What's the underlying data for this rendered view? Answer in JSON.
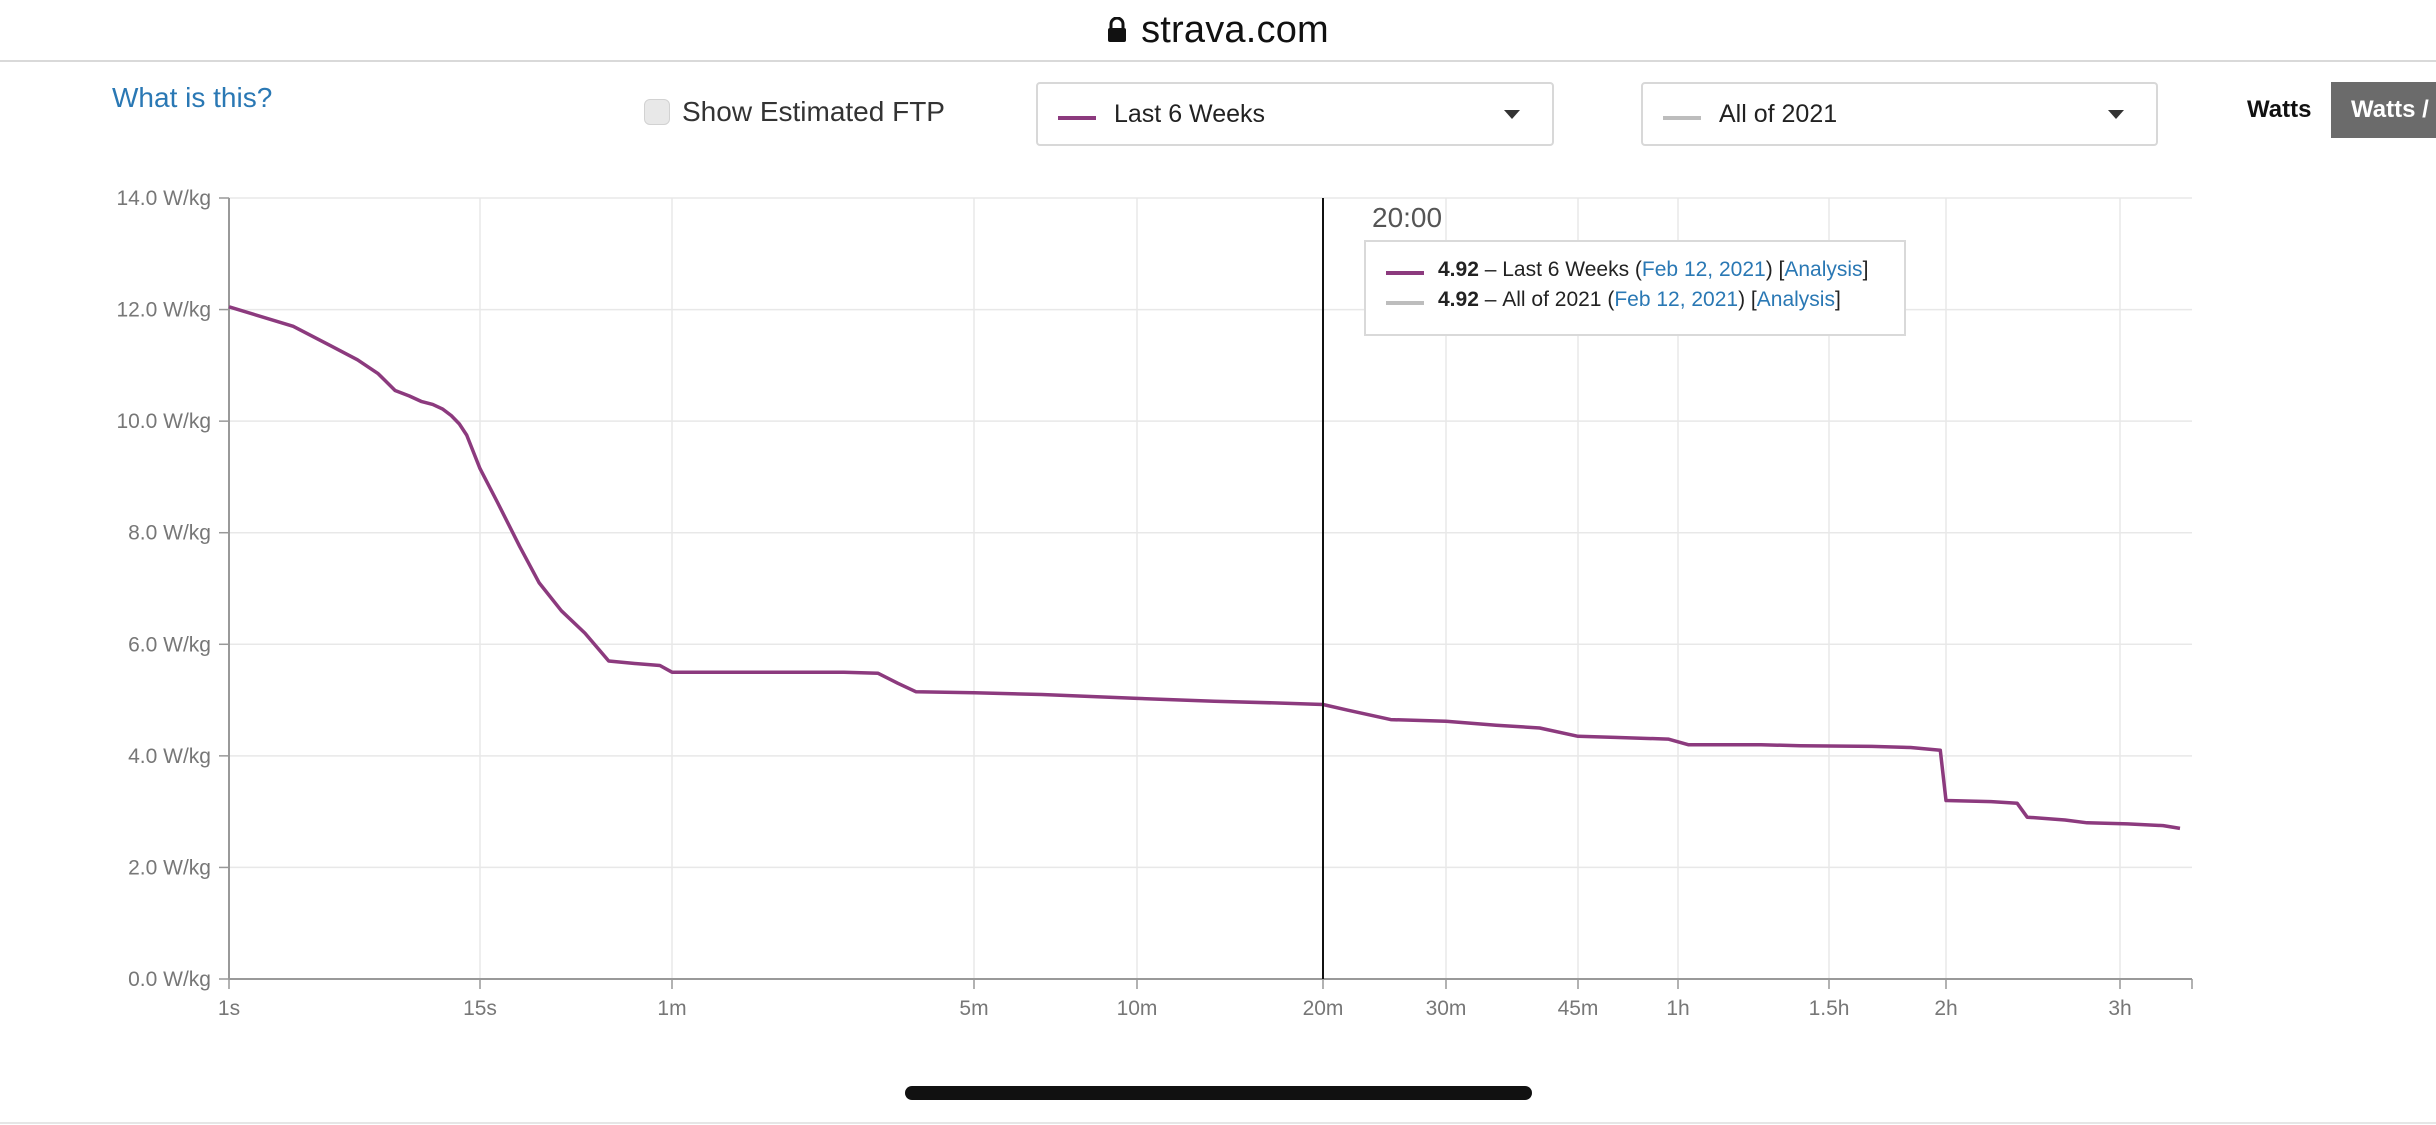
{
  "browser": {
    "url": "strava.com",
    "lock_icon": "lock-icon"
  },
  "header": {
    "what_is_this": "What is this?",
    "show_ftp_label": "Show Estimated FTP",
    "dropdown1": {
      "label": "Last 6 Weeks",
      "color": "#8c3a7e"
    },
    "dropdown2": {
      "label": "All of 2021",
      "color": "#bdbdbd"
    },
    "units": {
      "watts": "Watts",
      "wkg": "Watts /"
    }
  },
  "tooltip": {
    "time": "20:00",
    "rows": [
      {
        "value": "4.92",
        "dash": "–",
        "series": "Last 6 Weeks",
        "date": "Feb 12, 2021",
        "link": "Analysis",
        "color": "#8c3a7e"
      },
      {
        "value": "4.92",
        "dash": "–",
        "series": "All of 2021",
        "date": "Feb 12, 2021",
        "link": "Analysis",
        "color": "#bdbdbd"
      }
    ]
  },
  "chart_data": {
    "type": "line",
    "x_scale": "log-duration",
    "x_unit": "seconds",
    "ylim": [
      0,
      14
    ],
    "y_ticks": [
      {
        "value": 0,
        "label": "0.0 W/kg"
      },
      {
        "value": 2,
        "label": "2.0 W/kg"
      },
      {
        "value": 4,
        "label": "4.0 W/kg"
      },
      {
        "value": 6,
        "label": "6.0 W/kg"
      },
      {
        "value": 8,
        "label": "8.0 W/kg"
      },
      {
        "value": 10,
        "label": "10.0 W/kg"
      },
      {
        "value": 12,
        "label": "12.0 W/kg"
      },
      {
        "value": 14,
        "label": "14.0 W/kg"
      }
    ],
    "x_ticks": [
      {
        "value": 1,
        "label": "1s"
      },
      {
        "value": 15,
        "label": "15s"
      },
      {
        "value": 60,
        "label": "1m"
      },
      {
        "value": 300,
        "label": "5m"
      },
      {
        "value": 600,
        "label": "10m"
      },
      {
        "value": 1200,
        "label": "20m"
      },
      {
        "value": 1800,
        "label": "30m"
      },
      {
        "value": 2700,
        "label": "45m"
      },
      {
        "value": 3600,
        "label": "1h"
      },
      {
        "value": 5400,
        "label": "1.5h"
      },
      {
        "value": 7200,
        "label": "2h"
      },
      {
        "value": 10800,
        "label": "3h"
      }
    ],
    "grid": true,
    "cursor_x": 1200,
    "series": [
      {
        "name": "Last 6 Weeks",
        "color": "#8c3a7e",
        "points": [
          [
            1,
            12.05
          ],
          [
            2,
            11.7
          ],
          [
            3,
            11.35
          ],
          [
            4,
            11.1
          ],
          [
            5,
            10.85
          ],
          [
            6,
            10.55
          ],
          [
            7,
            10.45
          ],
          [
            8,
            10.35
          ],
          [
            9,
            10.3
          ],
          [
            10,
            10.22
          ],
          [
            11,
            10.1
          ],
          [
            12,
            9.95
          ],
          [
            13,
            9.75
          ],
          [
            15,
            9.15
          ],
          [
            17,
            8.55
          ],
          [
            20,
            7.75
          ],
          [
            23,
            7.1
          ],
          [
            27,
            6.6
          ],
          [
            32,
            6.2
          ],
          [
            38,
            5.7
          ],
          [
            45,
            5.66
          ],
          [
            55,
            5.62
          ],
          [
            60,
            5.5
          ],
          [
            75,
            5.5
          ],
          [
            100,
            5.5
          ],
          [
            150,
            5.5
          ],
          [
            180,
            5.48
          ],
          [
            200,
            5.3
          ],
          [
            220,
            5.15
          ],
          [
            300,
            5.13
          ],
          [
            400,
            5.1
          ],
          [
            600,
            5.03
          ],
          [
            800,
            4.98
          ],
          [
            1000,
            4.95
          ],
          [
            1200,
            4.92
          ],
          [
            1300,
            4.82
          ],
          [
            1500,
            4.65
          ],
          [
            1800,
            4.62
          ],
          [
            2100,
            4.55
          ],
          [
            2400,
            4.5
          ],
          [
            2700,
            4.35
          ],
          [
            3000,
            4.33
          ],
          [
            3500,
            4.3
          ],
          [
            3700,
            4.2
          ],
          [
            4500,
            4.2
          ],
          [
            5000,
            4.18
          ],
          [
            6000,
            4.17
          ],
          [
            6600,
            4.15
          ],
          [
            7100,
            4.1
          ],
          [
            7200,
            3.2
          ],
          [
            8000,
            3.18
          ],
          [
            8500,
            3.15
          ],
          [
            8700,
            2.9
          ],
          [
            9500,
            2.85
          ],
          [
            10000,
            2.8
          ],
          [
            11000,
            2.78
          ],
          [
            12000,
            2.75
          ],
          [
            12500,
            2.7
          ]
        ]
      },
      {
        "name": "All of 2021",
        "color": "#bdbdbd",
        "points": []
      }
    ]
  }
}
